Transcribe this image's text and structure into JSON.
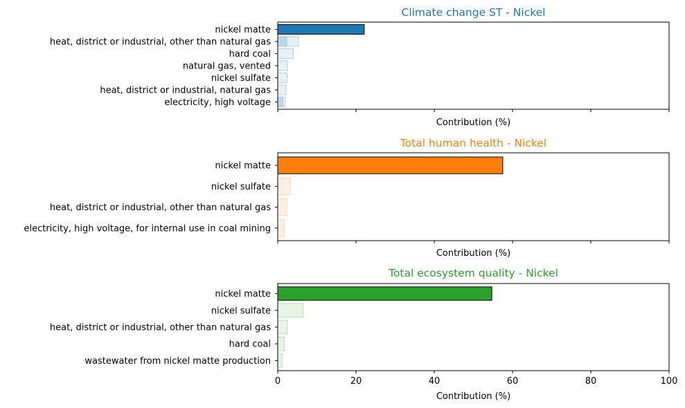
{
  "chart_data": [
    {
      "type": "bar",
      "orientation": "horizontal",
      "title": "Climate change ST - Nickel",
      "color": "#1f77b4",
      "xlabel": "Contribution (%)",
      "xlim": [
        0,
        100
      ],
      "categories": [
        "nickel matte",
        "heat, district or industrial, other than natural gas",
        "hard coal",
        "natural gas, vented",
        "nickel sulfate",
        "heat, district or industrial, natural gas",
        "electricity, high voltage"
      ],
      "values": [
        22.1,
        5.3,
        4.0,
        2.5,
        2.4,
        2.1,
        1.9
      ],
      "overlay_values": [
        0,
        2.3,
        0,
        0,
        0,
        0,
        1.3
      ],
      "show_tick_labels": false
    },
    {
      "type": "bar",
      "orientation": "horizontal",
      "title": "Total human health - Nickel",
      "color": "#ff7f0e",
      "xlabel": "Contribution (%)",
      "xlim": [
        0,
        100
      ],
      "categories": [
        "nickel matte",
        "nickel sulfate",
        "heat, district or industrial, other than natural gas",
        "electricity, high voltage, for internal use in coal mining"
      ],
      "values": [
        57.5,
        3.2,
        2.3,
        1.6
      ],
      "show_tick_labels": false
    },
    {
      "type": "bar",
      "orientation": "horizontal",
      "title": "Total ecosystem quality - Nickel",
      "color": "#2ca02c",
      "xlabel": "Contribution (%)",
      "xlim": [
        0,
        100
      ],
      "categories": [
        "nickel matte",
        "nickel sulfate",
        "heat, district or industrial, other than natural gas",
        "hard coal",
        "wastewater from nickel matte production"
      ],
      "values": [
        54.7,
        6.5,
        2.4,
        1.7,
        1.1
      ],
      "show_tick_labels": true,
      "xticks": [
        "0",
        "20",
        "40",
        "60",
        "80",
        "100"
      ]
    }
  ]
}
